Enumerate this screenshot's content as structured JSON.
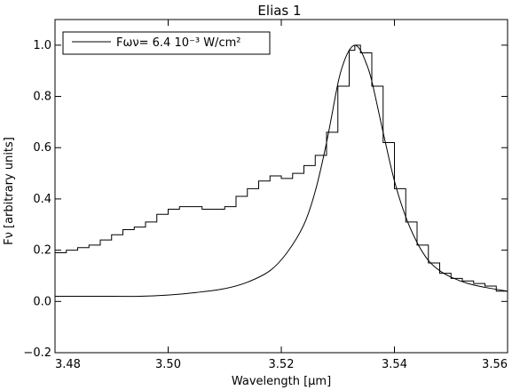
{
  "chart_data": {
    "type": "line",
    "title": "Elias 1",
    "xlabel": "Wavelength [μm]",
    "ylabel": "Fν [arbitrary units]",
    "xlim": [
      3.48,
      3.56
    ],
    "ylim": [
      -0.2,
      1.1
    ],
    "xticks": [
      "3.48",
      "3.50",
      "3.52",
      "3.54",
      "3.56"
    ],
    "yticks": [
      "−0.2",
      "0.0",
      "0.2",
      "0.4",
      "0.6",
      "0.8",
      "1.0"
    ],
    "grid": false,
    "legend": {
      "position": "top-left",
      "label": "Fων= 6.4 10⁻³ W/cm²"
    },
    "colors": {
      "line": "#000000",
      "background": "#ffffff"
    },
    "series": [
      {
        "style": "histogram",
        "x": [
          3.48,
          3.482,
          3.484,
          3.486,
          3.488,
          3.49,
          3.492,
          3.494,
          3.496,
          3.498,
          3.5,
          3.502,
          3.504,
          3.506,
          3.508,
          3.51,
          3.512,
          3.514,
          3.516,
          3.518,
          3.52,
          3.522,
          3.524,
          3.526,
          3.528,
          3.53,
          3.532,
          3.533,
          3.534,
          3.536,
          3.538,
          3.54,
          3.542,
          3.544,
          3.546,
          3.548,
          3.55,
          3.552,
          3.554,
          3.556,
          3.558,
          3.56
        ],
        "y": [
          0.19,
          0.2,
          0.21,
          0.22,
          0.24,
          0.26,
          0.28,
          0.29,
          0.31,
          0.34,
          0.36,
          0.37,
          0.37,
          0.36,
          0.36,
          0.37,
          0.41,
          0.44,
          0.47,
          0.49,
          0.48,
          0.5,
          0.53,
          0.57,
          0.66,
          0.84,
          0.98,
          1.0,
          0.97,
          0.84,
          0.62,
          0.44,
          0.31,
          0.22,
          0.15,
          0.11,
          0.09,
          0.08,
          0.07,
          0.06,
          0.04,
          0.03
        ]
      },
      {
        "style": "line",
        "x": [
          3.48,
          3.49,
          3.495,
          3.5,
          3.505,
          3.51,
          3.514,
          3.518,
          3.521,
          3.524,
          3.526,
          3.528,
          3.53,
          3.531,
          3.532,
          3.533,
          3.534,
          3.535,
          3.536,
          3.538,
          3.54,
          3.542,
          3.544,
          3.546,
          3.548,
          3.55,
          3.553,
          3.556,
          3.56
        ],
        "y": [
          0.02,
          0.02,
          0.02,
          0.025,
          0.035,
          0.05,
          0.075,
          0.12,
          0.19,
          0.3,
          0.43,
          0.62,
          0.85,
          0.93,
          0.98,
          1.0,
          0.98,
          0.93,
          0.86,
          0.66,
          0.47,
          0.33,
          0.23,
          0.16,
          0.12,
          0.095,
          0.07,
          0.055,
          0.04
        ]
      }
    ]
  }
}
